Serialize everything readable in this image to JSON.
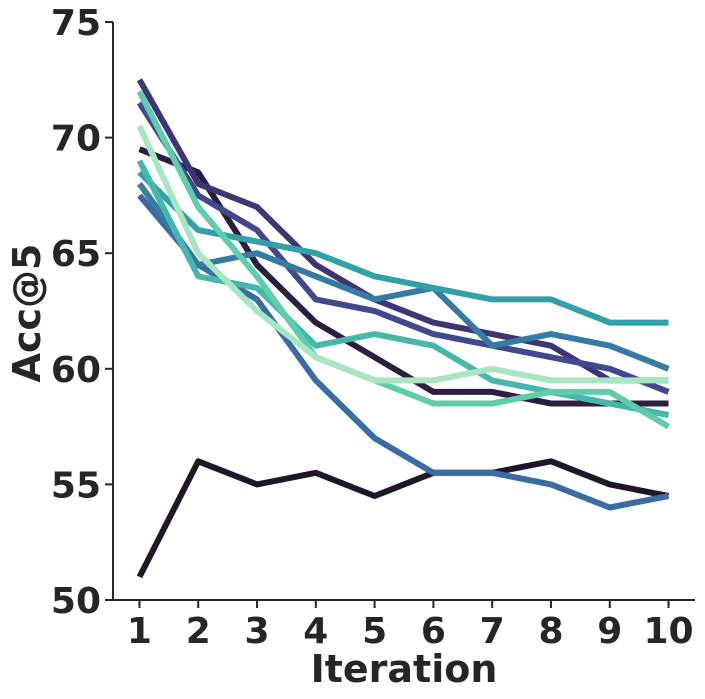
{
  "chart_data": {
    "type": "line",
    "title": "",
    "xlabel": "Iteration",
    "ylabel": "Acc@5",
    "x": [
      1,
      2,
      3,
      4,
      5,
      6,
      7,
      8,
      9,
      10
    ],
    "xticks": [
      "1",
      "2",
      "3",
      "4",
      "5",
      "6",
      "7",
      "8",
      "9",
      "10"
    ],
    "yticks": [
      "50",
      "55",
      "60",
      "65",
      "70",
      "75"
    ],
    "ylim": [
      50,
      75
    ],
    "xlim": [
      0.55,
      10.45
    ],
    "grid": false,
    "legend": "none",
    "series": [
      {
        "color": "#231529",
        "values": [
          51.0,
          56.0,
          55.0,
          55.5,
          54.5,
          55.5,
          55.5,
          56.0,
          55.0,
          54.5
        ]
      },
      {
        "color": "#2c1e40",
        "values": [
          69.5,
          68.5,
          64.5,
          62.0,
          60.5,
          59.0,
          59.0,
          58.5,
          58.5,
          58.5
        ]
      },
      {
        "color": "#3f3474",
        "values": [
          72.5,
          68.0,
          67.0,
          64.5,
          63.0,
          62.0,
          61.5,
          61.0,
          59.5,
          59.5
        ]
      },
      {
        "color": "#40498f",
        "values": [
          71.5,
          67.5,
          66.0,
          63.0,
          62.5,
          61.5,
          61.0,
          60.5,
          60.0,
          59.0
        ]
      },
      {
        "color": "#3a6ba3",
        "values": [
          67.5,
          64.5,
          63.0,
          59.5,
          57.0,
          55.5,
          55.5,
          55.0,
          54.0,
          54.5
        ]
      },
      {
        "color": "#357ba3",
        "values": [
          68.0,
          64.5,
          65.0,
          64.0,
          63.0,
          63.5,
          61.0,
          61.5,
          61.0,
          60.0
        ]
      },
      {
        "color": "#33a0a8",
        "values": [
          68.5,
          66.0,
          65.5,
          65.0,
          64.0,
          63.5,
          63.0,
          63.0,
          62.0,
          62.0
        ]
      },
      {
        "color": "#45b8ab",
        "values": [
          69.0,
          64.0,
          63.5,
          61.0,
          61.5,
          61.0,
          59.5,
          59.0,
          58.5,
          58.0
        ]
      },
      {
        "color": "#5fcdab",
        "values": [
          72.0,
          67.0,
          64.0,
          60.5,
          59.5,
          58.5,
          58.5,
          59.0,
          59.0,
          57.5
        ]
      },
      {
        "color": "#a8e6c1",
        "values": [
          70.5,
          65.0,
          62.5,
          60.5,
          59.5,
          59.5,
          60.0,
          59.5,
          59.5,
          59.5
        ]
      }
    ]
  }
}
